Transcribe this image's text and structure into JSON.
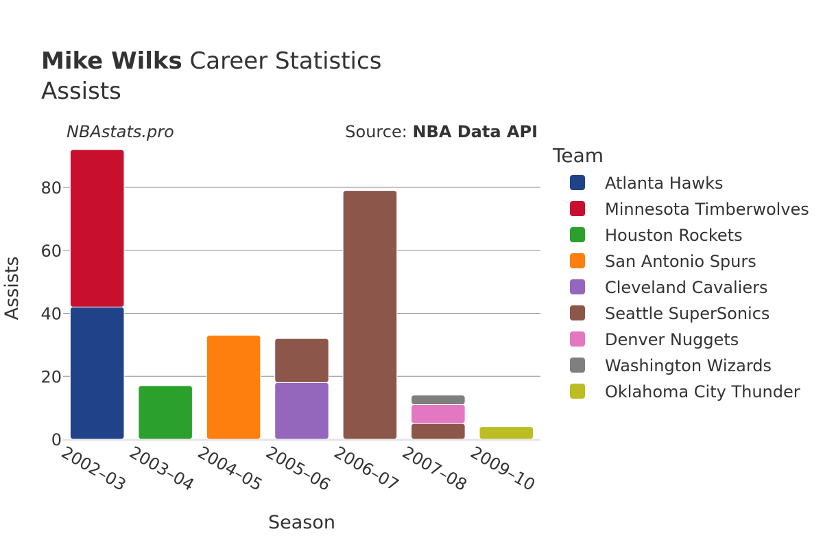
{
  "title": {
    "bold": "Mike Wilks",
    "rest": " Career Statistics",
    "subtitle": "Assists"
  },
  "watermark": "NBAstats.pro",
  "source": {
    "prefix": "Source: ",
    "name": "NBA Data API"
  },
  "chart_data": {
    "type": "bar",
    "stacked": true,
    "title": "Mike Wilks Career Statistics",
    "subtitle": "Assists",
    "xlabel": "Season",
    "ylabel": "Assists",
    "ylim": [
      0,
      92
    ],
    "yticks": [
      0,
      20,
      40,
      60,
      80
    ],
    "grid": true,
    "legend_title": "Team",
    "legend_position": "right",
    "categories": [
      "2002–03",
      "2003–04",
      "2004–05",
      "2005–06",
      "2006–07",
      "2007–08",
      "2009–10"
    ],
    "series": [
      {
        "name": "Atlanta Hawks",
        "color": "#1f4288",
        "values": [
          42,
          0,
          0,
          0,
          0,
          0,
          0
        ]
      },
      {
        "name": "Minnesota Timberwolves",
        "color": "#c8102e",
        "values": [
          50,
          0,
          0,
          0,
          0,
          0,
          0
        ]
      },
      {
        "name": "Houston Rockets",
        "color": "#2ca02c",
        "values": [
          0,
          17,
          0,
          0,
          0,
          0,
          0
        ]
      },
      {
        "name": "San Antonio Spurs",
        "color": "#ff7f0e",
        "values": [
          0,
          0,
          33,
          0,
          0,
          0,
          0
        ]
      },
      {
        "name": "Cleveland Cavaliers",
        "color": "#9467bd",
        "values": [
          0,
          0,
          0,
          18,
          0,
          0,
          0
        ]
      },
      {
        "name": "Seattle SuperSonics",
        "color": "#8c564b",
        "values": [
          0,
          0,
          0,
          14,
          79,
          5,
          0
        ]
      },
      {
        "name": "Denver Nuggets",
        "color": "#e377c2",
        "values": [
          0,
          0,
          0,
          0,
          0,
          6,
          0
        ]
      },
      {
        "name": "Washington Wizards",
        "color": "#7f7f7f",
        "values": [
          0,
          0,
          0,
          0,
          0,
          3,
          0
        ]
      },
      {
        "name": "Oklahoma City Thunder",
        "color": "#bcbd22",
        "values": [
          0,
          0,
          0,
          0,
          0,
          0,
          4
        ]
      }
    ]
  }
}
